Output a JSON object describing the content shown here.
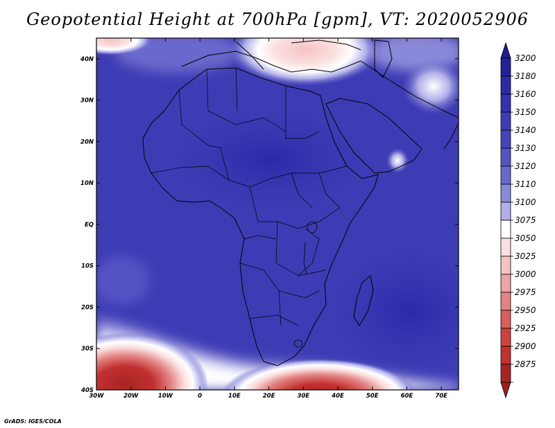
{
  "title": "Geopotential Height at 700hPa [gpm], VT: 2020052906",
  "credit": "GrADS: IGES/COLA",
  "map": {
    "lon_range": [
      -30,
      75
    ],
    "lat_range": [
      -40,
      45
    ],
    "lon_ticks": [
      {
        "value": -30,
        "label": "30W"
      },
      {
        "value": -20,
        "label": "20W"
      },
      {
        "value": -10,
        "label": "10W"
      },
      {
        "value": 0,
        "label": "0"
      },
      {
        "value": 10,
        "label": "10E"
      },
      {
        "value": 20,
        "label": "20E"
      },
      {
        "value": 30,
        "label": "30E"
      },
      {
        "value": 40,
        "label": "40E"
      },
      {
        "value": 50,
        "label": "50E"
      },
      {
        "value": 60,
        "label": "60E"
      },
      {
        "value": 70,
        "label": "70E"
      }
    ],
    "lat_ticks": [
      {
        "value": 40,
        "label": "40N"
      },
      {
        "value": 30,
        "label": "30N"
      },
      {
        "value": 20,
        "label": "20N"
      },
      {
        "value": 10,
        "label": "10N"
      },
      {
        "value": 0,
        "label": "EQ"
      },
      {
        "value": -10,
        "label": "10S"
      },
      {
        "value": -20,
        "label": "20S"
      },
      {
        "value": -30,
        "label": "30S"
      },
      {
        "value": -40,
        "label": "40S"
      }
    ]
  },
  "colorbar": {
    "levels": [
      {
        "label": "3200",
        "color": "#23219a"
      },
      {
        "label": "3180",
        "color": "#2b2aa6"
      },
      {
        "label": "3160",
        "color": "#3432b0"
      },
      {
        "label": "3150",
        "color": "#3d3bb6"
      },
      {
        "label": "3140",
        "color": "#4644bc"
      },
      {
        "label": "3130",
        "color": "#5553c4"
      },
      {
        "label": "3120",
        "color": "#6a68cc"
      },
      {
        "label": "3110",
        "color": "#8a88d8"
      },
      {
        "label": "3100",
        "color": "#b2b0e8"
      },
      {
        "label": "3075",
        "color": "#ffffff"
      },
      {
        "label": "3050",
        "color": "#fbe0e0"
      },
      {
        "label": "3025",
        "color": "#f5c3c3"
      },
      {
        "label": "3000",
        "color": "#eda4a4"
      },
      {
        "label": "2975",
        "color": "#e38282"
      },
      {
        "label": "2950",
        "color": "#d95e5e"
      },
      {
        "label": "2925",
        "color": "#cf4242"
      },
      {
        "label": "2900",
        "color": "#c23030"
      },
      {
        "label": "2875",
        "color": "#a82424"
      }
    ],
    "top_arrow_color": "#1e1c8e",
    "bottom_arrow_color": "#9a2020"
  },
  "colors": {
    "background_field": "#3e3cb4",
    "deep_field": "#3230a8",
    "frame": "#000000"
  }
}
